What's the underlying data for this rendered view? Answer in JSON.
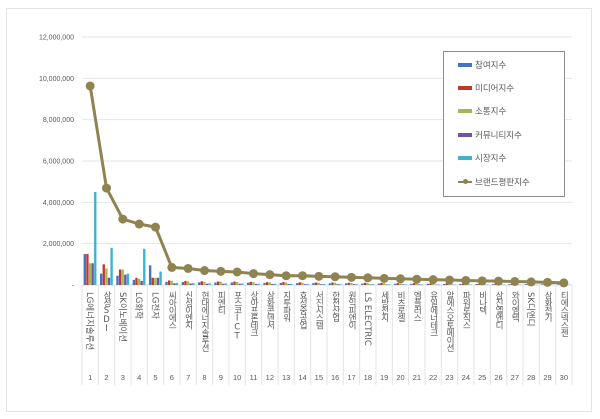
{
  "chart_data": {
    "type": "bar",
    "title": "",
    "xlabel": "",
    "ylabel": "",
    "ylim": [
      0,
      12000000
    ],
    "yticks": [
      "-",
      "2,000,000",
      "4,000,000",
      "6,000,000",
      "8,000,000",
      "10,000,000",
      "12,000,000"
    ],
    "grid": true,
    "legend_position": "right",
    "categories": [
      "LG에너지솔루션",
      "삼성SDI",
      "SK이노베이션",
      "LG화학",
      "LG전자",
      "씨아이에스",
      "신성이엔지",
      "현대에너지솔루션",
      "피엔티",
      "포스코ICT",
      "상아프론테크",
      "삼화콘덴서",
      "지투파워",
      "효성중공업",
      "서진시스템",
      "한전산업",
      "원익피앤이",
      "LS ELECTRIC",
      "세방전지",
      "비츠로셀",
      "엠플러스",
      "유일에너테크",
      "알에스오토메이션",
      "파워로직스",
      "비나텍",
      "삼진엘앤디",
      "와이엠텍",
      "SK디앤디",
      "삼화전기",
      "티에스넥스젠"
    ],
    "ranks": [
      "1",
      "2",
      "3",
      "4",
      "5",
      "6",
      "7",
      "8",
      "9",
      "10",
      "11",
      "12",
      "13",
      "14",
      "15",
      "16",
      "17",
      "18",
      "19",
      "20",
      "21",
      "22",
      "23",
      "24",
      "25",
      "26",
      "27",
      "28",
      "29",
      "30"
    ],
    "series": [
      {
        "name": "참여지수",
        "type": "bar",
        "color": "#4472c4",
        "values": [
          1500000,
          550000,
          450000,
          250000,
          950000,
          150000,
          140000,
          130000,
          120000,
          120000,
          110000,
          100000,
          100000,
          90000,
          90000,
          80000,
          80000,
          70000,
          70000,
          60000,
          60000,
          60000,
          50000,
          50000,
          50000,
          40000,
          40000,
          40000,
          30000,
          30000
        ]
      },
      {
        "name": "미디어지수",
        "type": "bar",
        "color": "#c0392b",
        "values": [
          1500000,
          1000000,
          750000,
          350000,
          350000,
          220000,
          200000,
          180000,
          170000,
          170000,
          150000,
          140000,
          140000,
          130000,
          120000,
          120000,
          110000,
          110000,
          100000,
          90000,
          90000,
          80000,
          80000,
          70000,
          60000,
          60000,
          50000,
          50000,
          40000,
          30000
        ]
      },
      {
        "name": "소통지수",
        "type": "bar",
        "color": "#9bbb59",
        "values": [
          1050000,
          800000,
          750000,
          300000,
          350000,
          200000,
          180000,
          160000,
          160000,
          150000,
          140000,
          130000,
          120000,
          120000,
          110000,
          110000,
          100000,
          90000,
          90000,
          80000,
          80000,
          70000,
          70000,
          60000,
          60000,
          50000,
          50000,
          40000,
          40000,
          30000
        ]
      },
      {
        "name": "커뮤니티지수",
        "type": "bar",
        "color": "#7054a0",
        "values": [
          1050000,
          350000,
          500000,
          200000,
          350000,
          80000,
          70000,
          60000,
          60000,
          60000,
          50000,
          50000,
          50000,
          40000,
          40000,
          40000,
          40000,
          30000,
          30000,
          30000,
          30000,
          20000,
          20000,
          20000,
          20000,
          20000,
          20000,
          10000,
          10000,
          10000
        ]
      },
      {
        "name": "시장지수",
        "type": "bar",
        "color": "#3fb2cc",
        "values": [
          4500000,
          1800000,
          550000,
          1750000,
          650000,
          100000,
          90000,
          80000,
          70000,
          70000,
          60000,
          60000,
          50000,
          50000,
          50000,
          40000,
          40000,
          40000,
          30000,
          30000,
          30000,
          30000,
          20000,
          20000,
          20000,
          20000,
          20000,
          10000,
          10000,
          10000
        ]
      },
      {
        "name": "브랜드평판지수",
        "type": "line",
        "color": "#8f8451",
        "values": [
          9630000,
          4690000,
          3190000,
          2950000,
          2800000,
          850000,
          800000,
          700000,
          660000,
          630000,
          550000,
          500000,
          450000,
          450000,
          420000,
          400000,
          370000,
          350000,
          320000,
          300000,
          280000,
          260000,
          240000,
          220000,
          200000,
          190000,
          170000,
          150000,
          130000,
          100000
        ]
      }
    ]
  }
}
